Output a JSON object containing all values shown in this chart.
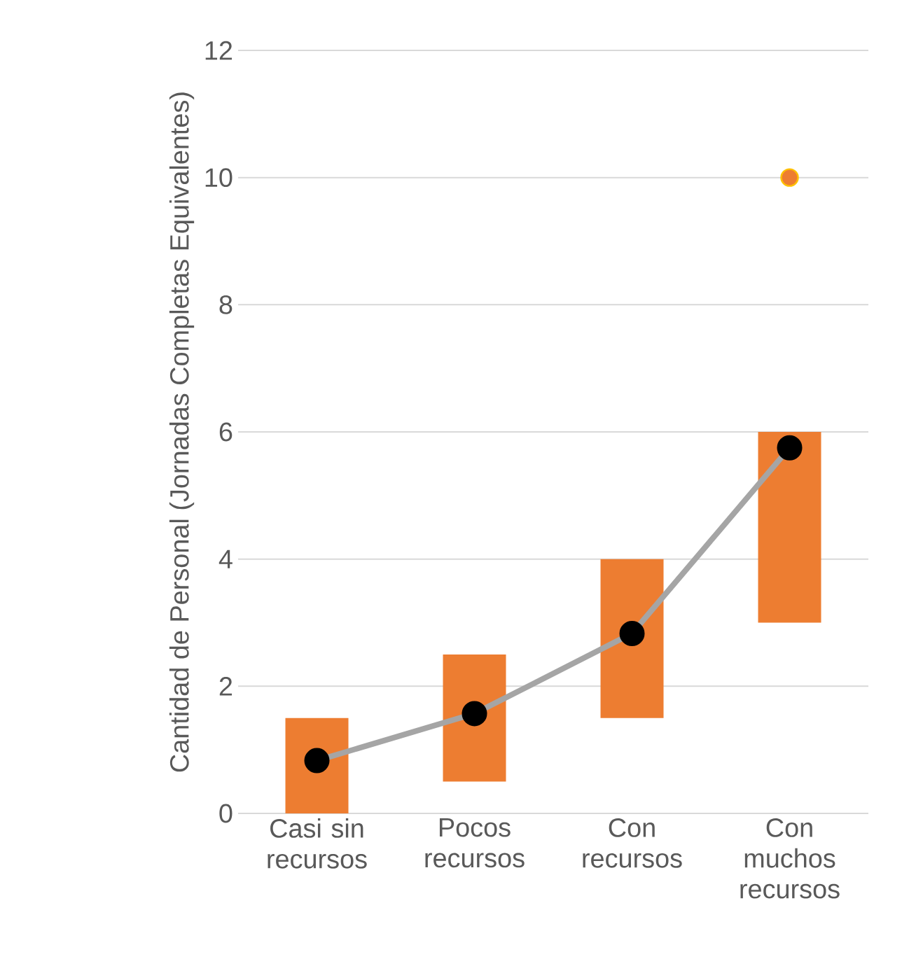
{
  "chart_data": {
    "type": "bar",
    "ylabel": "Cantidad de Personal (Jornadas Completas Equivalentes)",
    "categories": [
      "Casi sin recursos",
      "Pocos recursos",
      "Con recursos",
      "Con muchos recursos"
    ],
    "series": [
      {
        "color": "#ed7d31",
        "base": [
          0,
          0.5,
          1.5,
          3
        ],
        "values": [
          1.5,
          2,
          2.5,
          3
        ]
      },
      {
        "type": "line",
        "color": "#a5a5a5",
        "values": [
          0.83,
          1.57,
          2.83,
          5.75
        ]
      },
      {
        "type": "scatter",
        "color": "#ed7d31",
        "x": [
          "Con muchos recursos"
        ],
        "values": [
          10
        ]
      }
    ],
    "ylim": [
      0,
      12
    ],
    "yticks": [
      0,
      2,
      4,
      6,
      8,
      10,
      12
    ],
    "grid": "y",
    "marker": "circle"
  }
}
